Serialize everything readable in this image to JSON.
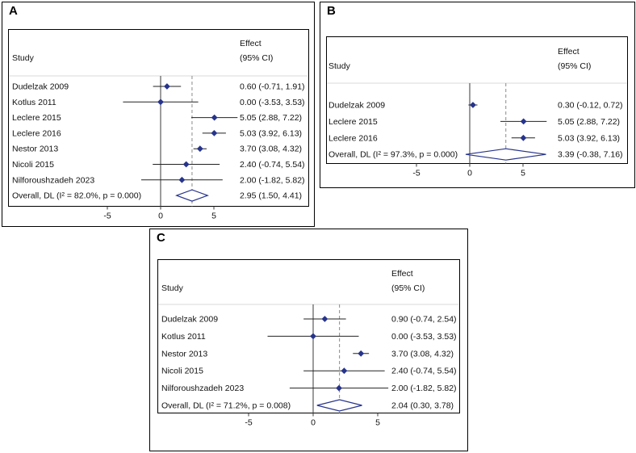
{
  "colors": {
    "frame": "#000000",
    "axis": "#3a3a3a",
    "separator": "#d8d8d8",
    "ci": "#222222",
    "marker": "#27348b",
    "diamond": "#27348b",
    "dashed": "#8a8a8a",
    "text": "#111111"
  },
  "chart_data": [
    {
      "type": "forest",
      "panel": "A",
      "columns": {
        "study": "Study",
        "effect_line1": "Effect",
        "effect_line2": "(95% CI)"
      },
      "xticks": [
        -5,
        0,
        5
      ],
      "rows": [
        {
          "study": "Dudelzak 2009",
          "est": 0.6,
          "lo": -0.71,
          "hi": 1.91,
          "effect": "0.60 (-0.71, 1.91)"
        },
        {
          "study": "Kotlus 2011",
          "est": 0.0,
          "lo": -3.53,
          "hi": 3.53,
          "effect": "0.00 (-3.53, 3.53)"
        },
        {
          "study": "Leclere 2015",
          "est": 5.05,
          "lo": 2.88,
          "hi": 7.22,
          "effect": "5.05 (2.88, 7.22)"
        },
        {
          "study": "Leclere 2016",
          "est": 5.03,
          "lo": 3.92,
          "hi": 6.13,
          "effect": "5.03 (3.92, 6.13)"
        },
        {
          "study": "Nestor 2013",
          "est": 3.7,
          "lo": 3.08,
          "hi": 4.32,
          "effect": "3.70 (3.08, 4.32)"
        },
        {
          "study": "Nicoli 2015",
          "est": 2.4,
          "lo": -0.74,
          "hi": 5.54,
          "effect": "2.40 (-0.74, 5.54)"
        },
        {
          "study": "Nilforoushzadeh 2023",
          "est": 2.0,
          "lo": -1.82,
          "hi": 5.82,
          "effect": "2.00 (-1.82, 5.82)"
        },
        {
          "study": "Overall, DL (I² = 82.0%, p = 0.000)",
          "est": 2.95,
          "lo": 1.5,
          "hi": 4.41,
          "effect": "2.95 (1.50, 4.41)",
          "overall": true
        }
      ]
    },
    {
      "type": "forest",
      "panel": "B",
      "columns": {
        "study": "Study",
        "effect_line1": "Effect",
        "effect_line2": "(95% CI)"
      },
      "xticks": [
        -5,
        0,
        5
      ],
      "rows": [
        {
          "study": "Dudelzak 2009",
          "est": 0.3,
          "lo": -0.12,
          "hi": 0.72,
          "effect": "0.30 (-0.12, 0.72)"
        },
        {
          "study": "Leclere 2015",
          "est": 5.05,
          "lo": 2.88,
          "hi": 7.22,
          "effect": "5.05 (2.88, 7.22)"
        },
        {
          "study": "Leclere 2016",
          "est": 5.03,
          "lo": 3.92,
          "hi": 6.13,
          "effect": "5.03 (3.92, 6.13)"
        },
        {
          "study": "Overall, DL (I² = 97.3%, p = 0.000)",
          "est": 3.39,
          "lo": -0.38,
          "hi": 7.16,
          "effect": "3.39 (-0.38, 7.16)",
          "overall": true
        }
      ]
    },
    {
      "type": "forest",
      "panel": "C",
      "columns": {
        "study": "Study",
        "effect_line1": "Effect",
        "effect_line2": "(95% CI)"
      },
      "xticks": [
        -5,
        0,
        5
      ],
      "rows": [
        {
          "study": "Dudelzak 2009",
          "est": 0.9,
          "lo": -0.74,
          "hi": 2.54,
          "effect": "0.90 (-0.74, 2.54)"
        },
        {
          "study": "Kotlus 2011",
          "est": 0.0,
          "lo": -3.53,
          "hi": 3.53,
          "effect": "0.00 (-3.53, 3.53)"
        },
        {
          "study": "Nestor 2013",
          "est": 3.7,
          "lo": 3.08,
          "hi": 4.32,
          "effect": "3.70 (3.08, 4.32)"
        },
        {
          "study": "Nicoli 2015",
          "est": 2.4,
          "lo": -0.74,
          "hi": 5.54,
          "effect": "2.40 (-0.74, 5.54)"
        },
        {
          "study": "Nilforoushzadeh 2023",
          "est": 2.0,
          "lo": -1.82,
          "hi": 5.82,
          "effect": "2.00 (-1.82, 5.82)"
        },
        {
          "study": "Overall, DL (I² = 71.2%, p = 0.008)",
          "est": 2.04,
          "lo": 0.3,
          "hi": 3.78,
          "effect": "2.04 (0.30, 3.78)",
          "overall": true
        }
      ]
    }
  ]
}
